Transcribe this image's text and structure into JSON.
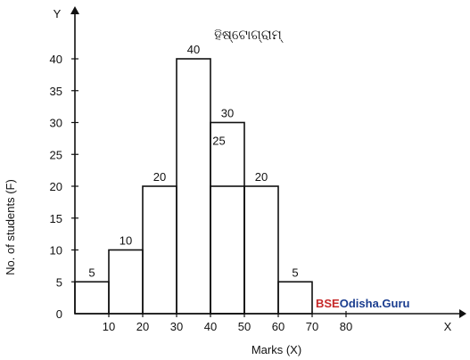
{
  "chart_data": {
    "type": "bar",
    "title": "ହିଷ୍ଟୋଗ୍ରାମ୍",
    "xlabel": "Marks (X)",
    "ylabel": "No. of students (F)",
    "x_axis_letter": "X",
    "y_axis_letter": "Y",
    "origin_label": "0",
    "x_ticks": [
      "10",
      "20",
      "30",
      "40",
      "50",
      "60",
      "70",
      "80"
    ],
    "y_ticks": [
      "5",
      "10",
      "15",
      "20",
      "25",
      "30",
      "35",
      "40"
    ],
    "xlim": [
      -10,
      100
    ],
    "ylim": [
      0,
      45
    ],
    "bins": [
      {
        "from": 0,
        "to": 10,
        "value": 5,
        "label": "5"
      },
      {
        "from": 10,
        "to": 20,
        "value": 10,
        "label": "10"
      },
      {
        "from": 20,
        "to": 30,
        "value": 20,
        "label": "20"
      },
      {
        "from": 30,
        "to": 40,
        "value": 40,
        "label": "40"
      },
      {
        "from": 40,
        "to": 50,
        "value": 30,
        "label": "30"
      },
      {
        "from": 50,
        "to": 60,
        "value": 20,
        "label": "20"
      },
      {
        "from": 60,
        "to": 70,
        "value": 5,
        "label": "5"
      }
    ],
    "overlap_rectangle": {
      "from": 40,
      "to": 50,
      "value": 20
    },
    "annotation": "25",
    "grid": false,
    "legend": "none"
  },
  "watermark": {
    "part1": "BSE",
    "part2": "Odisha.",
    "part3": "Guru",
    "color1": "#c62828",
    "color2": "#1a3d8f"
  }
}
